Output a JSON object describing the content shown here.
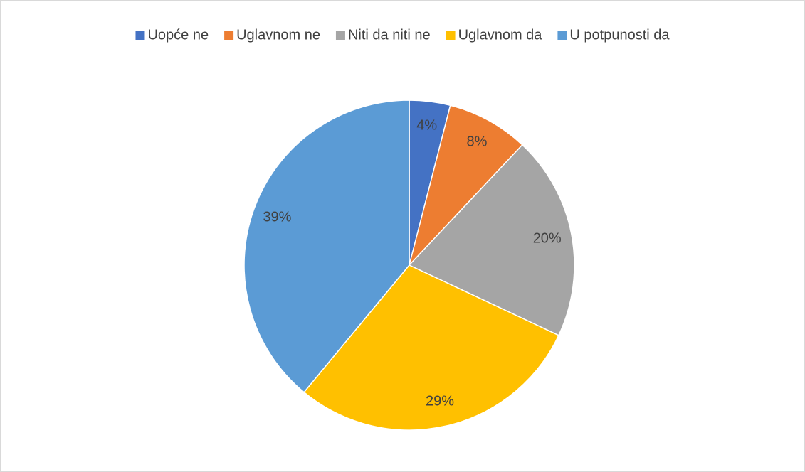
{
  "chart_data": {
    "type": "pie",
    "categories": [
      "Uopće ne",
      "Uglavnom ne",
      "Niti da niti ne",
      "Uglavnom da",
      "U potpunosti da"
    ],
    "values": [
      4,
      8,
      20,
      29,
      39
    ],
    "value_labels": [
      "4%",
      "8%",
      "20%",
      "29%",
      "39%"
    ],
    "colors": [
      "#4472c4",
      "#ed7d31",
      "#a5a5a5",
      "#ffc000",
      "#5b9bd5"
    ],
    "legend": "top"
  }
}
